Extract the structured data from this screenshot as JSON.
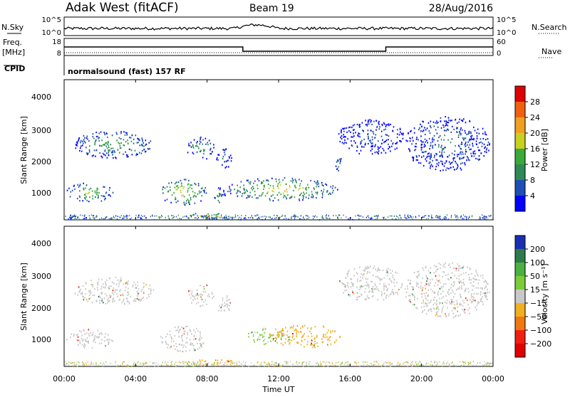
{
  "header": {
    "title": "Adak West (fitACF)",
    "beam": "Beam 19",
    "date": "28/Aug/2016"
  },
  "side_labels": {
    "nsky": "N.Sky",
    "freq": "Freq.",
    "freq_unit": "[MHz]",
    "cpid": "CPID",
    "nsearch": "N.Search",
    "nave": "Nave"
  },
  "cpid_text": "normalsound (fast) 157 RF",
  "noise_panel": {
    "left_ticks": [
      "10^5",
      "10^0"
    ],
    "right_ticks": [
      "10^5",
      "10^0"
    ]
  },
  "freq_panel": {
    "left_ticks": [
      "18",
      "8"
    ],
    "right_ticks": [
      "60",
      "0"
    ],
    "freq_segments": [
      {
        "start_hour": 0,
        "end_hour": 10,
        "value": 13
      },
      {
        "start_hour": 10,
        "end_hour": 18,
        "value": 10
      },
      {
        "start_hour": 18,
        "end_hour": 24,
        "value": 13
      }
    ]
  },
  "time_axis": {
    "ticks": [
      "00:00",
      "04:00",
      "08:00",
      "12:00",
      "16:00",
      "20:00",
      "00:00"
    ],
    "label": "Time UT"
  },
  "range_axis": {
    "label": "Slant Range [km]",
    "ticks": [
      "1000",
      "2000",
      "3000",
      "4000"
    ]
  },
  "power_colorbar": {
    "label": "Power [dB]",
    "ticks": [
      "4",
      "8",
      "12",
      "16",
      "20",
      "24",
      "28"
    ],
    "colors": [
      "#0000ff",
      "#1e4fb4",
      "#2f8a55",
      "#3aaa3a",
      "#c8d020",
      "#f0a020",
      "#f06010",
      "#e00000"
    ]
  },
  "velocity_colorbar": {
    "label": "Velocity [m s⁻¹]",
    "ticks": [
      "200",
      "100",
      "50",
      "15",
      "-15",
      "-50",
      "-100",
      "-200"
    ],
    "colors": [
      "#1a2fb0",
      "#2f7a4a",
      "#4ab040",
      "#7acc3a",
      "#c8c8c8",
      "#f0b020",
      "#f07810",
      "#f02010",
      "#e00000"
    ]
  },
  "chart_data": {
    "type": "heatmap",
    "x_range_hours": [
      0,
      24
    ],
    "y_range_km": [
      180,
      4500
    ],
    "power_clusters": [
      {
        "t0": 0.1,
        "t1": 2.8,
        "r0": 750,
        "r1": 1350,
        "peak_db": 18
      },
      {
        "t0": 0.5,
        "t1": 5.0,
        "r0": 2100,
        "r1": 2950,
        "peak_db": 14
      },
      {
        "t0": 5.3,
        "t1": 8.0,
        "r0": 650,
        "r1": 1450,
        "peak_db": 22
      },
      {
        "t0": 6.8,
        "t1": 8.4,
        "r0": 2050,
        "r1": 2750,
        "peak_db": 12
      },
      {
        "t0": 8.3,
        "t1": 9.0,
        "r0": 650,
        "r1": 1200,
        "peak_db": 10
      },
      {
        "t0": 8.5,
        "t1": 9.4,
        "r0": 1800,
        "r1": 2400,
        "peak_db": 8
      },
      {
        "t0": 9.0,
        "t1": 15.3,
        "r0": 780,
        "r1": 1500,
        "peak_db": 22
      },
      {
        "t0": 6.8,
        "t1": 9.6,
        "r0": 220,
        "r1": 420,
        "peak_db": 26
      },
      {
        "t0": 15.1,
        "t1": 15.5,
        "r0": 1700,
        "r1": 2250,
        "peak_db": 10
      },
      {
        "t0": 15.3,
        "t1": 19.0,
        "r0": 2200,
        "r1": 3300,
        "peak_db": 6
      },
      {
        "t0": 19.0,
        "t1": 23.8,
        "r0": 1700,
        "r1": 3400,
        "peak_db": 8
      }
    ],
    "velocity_clusters": [
      {
        "t0": 0.1,
        "t1": 2.8,
        "r0": 750,
        "r1": 1350,
        "vel": 0
      },
      {
        "t0": 0.5,
        "t1": 5.0,
        "r0": 2100,
        "r1": 2950,
        "vel": 0
      },
      {
        "t0": 5.3,
        "t1": 8.0,
        "r0": 650,
        "r1": 1450,
        "vel": 0
      },
      {
        "t0": 6.8,
        "t1": 8.4,
        "r0": 2050,
        "r1": 2750,
        "vel": 0
      },
      {
        "t0": 8.5,
        "t1": 9.4,
        "r0": 1800,
        "r1": 2400,
        "vel": 0
      },
      {
        "t0": 10.2,
        "t1": 12.4,
        "r0": 880,
        "r1": 1400,
        "vel": 20
      },
      {
        "t0": 11.4,
        "t1": 15.5,
        "r0": 780,
        "r1": 1500,
        "vel": -40
      },
      {
        "t0": 6.8,
        "t1": 9.6,
        "r0": 220,
        "r1": 420,
        "vel": -40
      },
      {
        "t0": 15.3,
        "t1": 19.0,
        "r0": 2200,
        "r1": 3300,
        "vel": 0
      },
      {
        "t0": 19.0,
        "t1": 23.8,
        "r0": 1700,
        "r1": 3400,
        "vel": 0
      }
    ]
  }
}
